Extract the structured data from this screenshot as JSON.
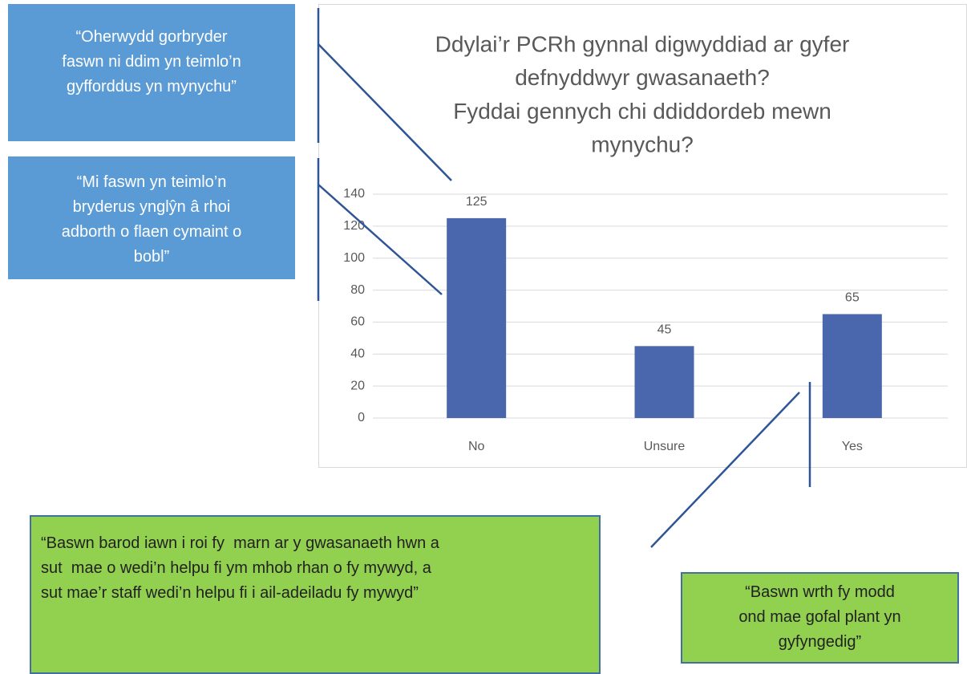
{
  "chart_data": {
    "type": "bar",
    "title": [
      "Ddylai’r PCRh gynnal digwyddiad ar gyfer",
      "defnyddwyr gwasanaeth?",
      "Fyddai gennych chi ddiddordeb mewn",
      "mynychu?"
    ],
    "categories": [
      "No",
      "Unsure",
      "Yes"
    ],
    "values": [
      125,
      45,
      65
    ],
    "color": "#4a66ac",
    "ylim": [
      0,
      140
    ],
    "yticks": [
      0,
      20,
      40,
      60,
      80,
      100,
      120,
      140
    ],
    "grid": true,
    "annotations": [
      {
        "lines": [
          "“Oherwydd gorbryder",
          "faswn ni ddim yn teimlo’n",
          "gyfforddus yn mynychu”"
        ]
      },
      {
        "lines": [
          "“Mi faswn yn teimlo’n",
          "bryderus ynglŷn â rhoi",
          "adborth o flaen cymaint o",
          "bobl”"
        ]
      },
      {
        "lines": [
          "“Baswn barod iawn i roi fy  marn ar y gwasanaeth hwn a",
          "sut  mae o wedi’n helpu fi ym mhob rhan o fy mywyd, a",
          "sut mae’r staff wedi’n helpu fi i ail-adeiladu fy mywyd”"
        ]
      },
      {
        "lines": [
          "“Baswn wrth fy modd",
          "ond mae gofal plant yn",
          "gyfyngedig”"
        ]
      }
    ]
  }
}
